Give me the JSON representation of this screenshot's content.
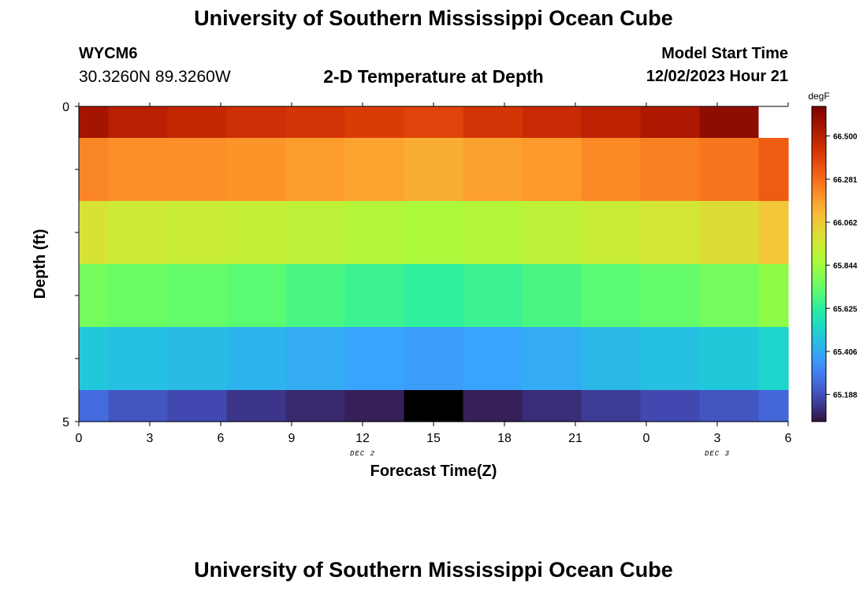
{
  "header": {
    "title": "University of Southern Mississippi Ocean Cube",
    "station_id": "WYCM6",
    "station_coords": "30.3260N  89.3260W",
    "plot_title": "2-D Temperature at Depth",
    "model_start_label": "Model Start Time",
    "model_start_value": "12/02/2023 Hour 21"
  },
  "footer": {
    "title": "University of Southern Mississippi Ocean Cube"
  },
  "colors": {
    "background": "#ffffff",
    "missing": "#ffffff",
    "below_range": "#000000"
  },
  "chart_data": {
    "type": "heatmap",
    "title": "2-D Temperature at Depth",
    "xlabel": "Forecast Time(Z)",
    "ylabel": "Depth (ft)",
    "x_tick_labels": [
      "0",
      "3",
      "6",
      "9",
      "12",
      "15",
      "18",
      "21",
      "0",
      "3",
      "6"
    ],
    "date_labels": [
      {
        "text": "DEC 2",
        "at_tick": 4
      },
      {
        "text": "DEC 3",
        "at_tick": 9
      }
    ],
    "y_tick_labels": [
      {
        "value": 0,
        "text": "0"
      },
      {
        "value": 1,
        "text": ""
      },
      {
        "value": 2,
        "text": ""
      },
      {
        "value": 3,
        "text": ""
      },
      {
        "value": 4,
        "text": ""
      },
      {
        "value": 5,
        "text": "5"
      }
    ],
    "ylim": [
      0,
      5
    ],
    "colorbar": {
      "unit": "degF",
      "ticks": [
        "65.188",
        "65.406",
        "65.625",
        "65.844",
        "66.062",
        "66.281",
        "66.500"
      ],
      "range": [
        65.05,
        66.65
      ]
    },
    "column_hours": [
      0,
      2.5,
      5,
      7.5,
      10,
      12.5,
      15,
      17.5,
      20,
      22.5,
      25,
      27.5,
      30
    ],
    "row_bands": [
      [
        0,
        0.5
      ],
      [
        0.5,
        1.5
      ],
      [
        1.5,
        2.5
      ],
      [
        2.5,
        3.5
      ],
      [
        3.5,
        4.5
      ],
      [
        4.5,
        5.0
      ]
    ],
    "values": [
      [
        66.55,
        66.5,
        66.47,
        66.44,
        66.42,
        66.4,
        66.38,
        66.42,
        66.46,
        66.49,
        66.53,
        66.6,
        null
      ],
      [
        66.23,
        66.21,
        66.21,
        66.2,
        66.18,
        66.16,
        66.14,
        66.17,
        66.19,
        66.22,
        66.24,
        66.26,
        66.32
      ],
      [
        65.98,
        65.95,
        65.94,
        65.93,
        65.91,
        65.89,
        65.87,
        65.89,
        65.91,
        65.94,
        65.97,
        66.0,
        66.07
      ],
      [
        65.76,
        65.74,
        65.73,
        65.71,
        65.68,
        65.65,
        65.63,
        65.65,
        65.68,
        65.71,
        65.73,
        65.76,
        65.81
      ],
      [
        65.48,
        65.46,
        65.45,
        65.43,
        65.41,
        65.39,
        65.37,
        65.39,
        65.41,
        65.44,
        65.46,
        65.48,
        65.52
      ],
      [
        65.25,
        65.2,
        65.17,
        65.13,
        65.1,
        65.08,
        65.0,
        65.08,
        65.11,
        65.14,
        65.17,
        65.2,
        65.24
      ]
    ]
  }
}
